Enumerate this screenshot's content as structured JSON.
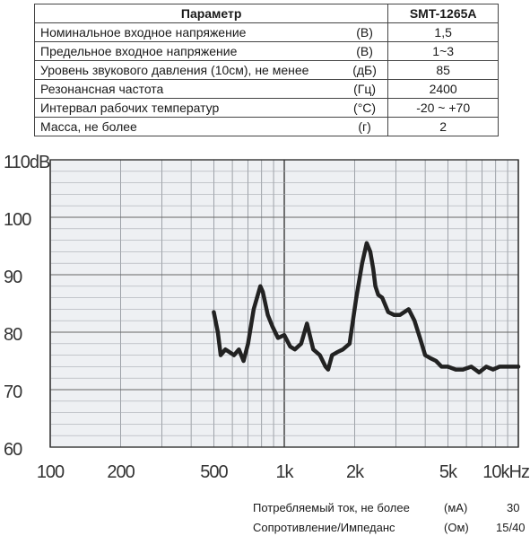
{
  "table": {
    "header": {
      "param": "Параметр",
      "model": "SMT-1265A"
    },
    "rows": [
      {
        "name": "Номинальное входное напряжение",
        "unit": "(В)",
        "value": "1,5"
      },
      {
        "name": "Предельное входное напряжение",
        "unit": "(В)",
        "value": "1~3"
      },
      {
        "name": "Уровень звукового давления (10см), не менее",
        "unit": "(дБ)",
        "value": "85"
      },
      {
        "name": "Резонансная частота",
        "unit": "(Гц)",
        "value": "2400"
      },
      {
        "name": "Интервал рабочих температур",
        "unit": "(°C)",
        "value": "-20 ~ +70"
      },
      {
        "name": "Масса, не более",
        "unit": "(г)",
        "value": "2"
      }
    ]
  },
  "footer": [
    {
      "label": "Потребляемый ток, не более",
      "unit": "(мА)",
      "value": "30"
    },
    {
      "label": "Сопротивление/Импеданс",
      "unit": "(Ом)",
      "value": "15/40"
    }
  ],
  "chart_data": {
    "type": "line",
    "xscale": "log",
    "xlim": [
      100,
      10000
    ],
    "ylim": [
      60,
      110
    ],
    "x_ticks": [
      100,
      200,
      500,
      1000,
      2000,
      5000,
      10000
    ],
    "x_tick_labels": [
      "100",
      "200",
      "500",
      "1k",
      "2k",
      "5k",
      "10kHz"
    ],
    "y_ticks": [
      60,
      70,
      80,
      90,
      100,
      110
    ],
    "y_tick_labels": [
      "60",
      "70",
      "80",
      "90",
      "100",
      "110dB"
    ],
    "series": [
      {
        "color": "#222222",
        "x": [
          500,
          520,
          535,
          560,
          585,
          610,
          640,
          670,
          700,
          740,
          790,
          810,
          850,
          890,
          940,
          1000,
          1060,
          1110,
          1180,
          1250,
          1330,
          1420,
          1500,
          1540,
          1600,
          1680,
          1780,
          1900,
          2030,
          2150,
          2250,
          2330,
          2400,
          2450,
          2520,
          2620,
          2780,
          2950,
          3120,
          3400,
          3600,
          3800,
          4000,
          4200,
          4450,
          4700,
          5000,
          5400,
          5800,
          6300,
          6800,
          7300,
          7800,
          8300,
          8900,
          9500,
          10000
        ],
        "y": [
          83.5,
          80,
          76,
          77,
          76.5,
          76,
          77,
          75,
          78,
          84,
          88,
          87,
          83,
          81,
          79,
          79.5,
          77.5,
          77,
          78,
          81.5,
          77,
          76,
          74,
          73.5,
          76,
          76.5,
          77,
          78,
          86,
          92,
          95.5,
          94,
          91,
          88,
          86.5,
          86,
          83.5,
          83,
          83,
          84,
          82,
          79,
          76,
          75.5,
          75,
          74,
          74,
          73.5,
          73.5,
          74,
          73,
          74,
          73.5,
          74,
          74,
          74,
          74
        ]
      }
    ]
  }
}
